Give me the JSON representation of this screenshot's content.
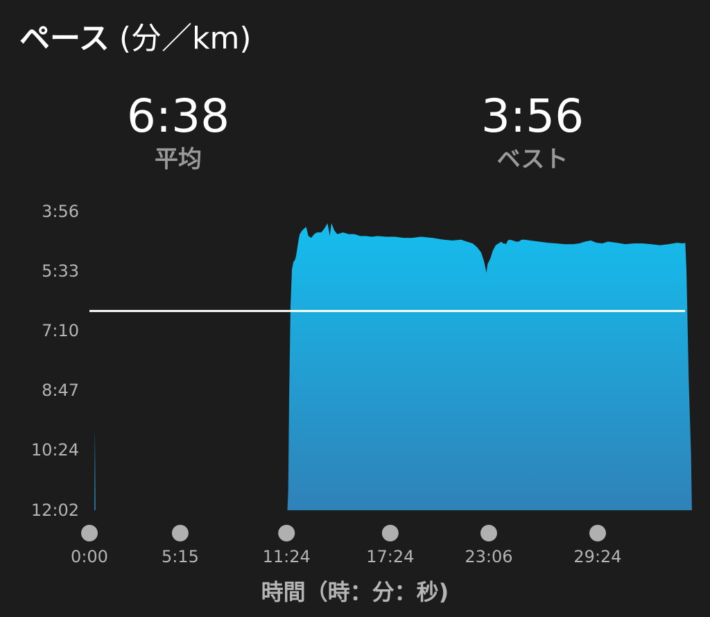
{
  "title": "ペース",
  "title_unit": "(分／km)",
  "stats": {
    "average": {
      "value": "6:38",
      "label": "平均"
    },
    "best": {
      "value": "3:56",
      "label": "ベスト"
    }
  },
  "colors": {
    "background": "#1c1c1c",
    "fill_top": "#15bdee",
    "fill_bottom": "#2f82b8",
    "average_line": "#ffffff",
    "marker": "#b0b0b0"
  },
  "chart_data": {
    "type": "area",
    "ylabel": "",
    "xlabel": "時間（時：分：秒)",
    "y_unit": "minutes per km",
    "y_reversed": true,
    "ylim": [
      12.0333,
      3.9333
    ],
    "xlim_seconds": [
      0,
      2130
    ],
    "y_ticks": [
      {
        "label": "3:56",
        "value": 3.9333
      },
      {
        "label": "5:33",
        "value": 5.55
      },
      {
        "label": "7:10",
        "value": 7.1667
      },
      {
        "label": "8:47",
        "value": 8.7833
      },
      {
        "label": "10:24",
        "value": 10.4
      },
      {
        "label": "12:02",
        "value": 12.0333
      }
    ],
    "x_ticks": [
      {
        "label": "0:00",
        "value": 0
      },
      {
        "label": "5:15",
        "value": 315
      },
      {
        "label": "11:24",
        "value": 684
      },
      {
        "label": "17:24",
        "value": 1044
      },
      {
        "label": "23:06",
        "value": 1386
      },
      {
        "label": "29:24",
        "value": 1764
      }
    ],
    "average_pace": 6.6333,
    "series": [
      {
        "x": [
          15,
          17,
          19,
          21,
          23,
          687,
          690,
          693,
          698,
          703,
          708,
          713,
          717,
          722,
          726,
          730,
          734,
          738,
          745,
          752,
          760,
          770,
          780,
          790,
          805,
          815,
          823,
          826,
          830,
          834,
          840,
          850,
          860,
          880,
          900,
          920,
          940,
          960,
          980,
          1000,
          1030,
          1060,
          1090,
          1120,
          1150,
          1190,
          1230,
          1260,
          1290,
          1310,
          1330,
          1345,
          1360,
          1370,
          1378,
          1382,
          1386,
          1392,
          1400,
          1410,
          1420,
          1430,
          1435,
          1440,
          1446,
          1452,
          1458,
          1470,
          1480,
          1490,
          1500,
          1510,
          1530,
          1560,
          1590,
          1620,
          1650,
          1680,
          1700,
          1720,
          1740,
          1760,
          1780,
          1800,
          1830,
          1860,
          1890,
          1920,
          1950,
          1980,
          2010,
          2040,
          2060,
          2068,
          2072,
          2080,
          2088,
          2091
        ],
        "y": [
          12.0333,
          12.0333,
          9.85,
          12.0333,
          12.0333,
          12.0333,
          11.5,
          9.0,
          6.5,
          5.5,
          5.3,
          5.25,
          5.15,
          4.9,
          4.7,
          4.55,
          4.5,
          4.45,
          4.4,
          4.35,
          4.6,
          4.65,
          4.55,
          4.5,
          4.5,
          4.4,
          4.3,
          4.25,
          4.4,
          4.6,
          4.25,
          4.45,
          4.55,
          4.5,
          4.55,
          4.55,
          4.6,
          4.6,
          4.62,
          4.6,
          4.62,
          4.62,
          4.65,
          4.65,
          4.62,
          4.65,
          4.7,
          4.72,
          4.7,
          4.75,
          4.8,
          4.9,
          5.05,
          5.3,
          5.6,
          5.35,
          5.3,
          5.2,
          5.0,
          4.85,
          4.8,
          4.75,
          4.8,
          4.8,
          4.82,
          4.72,
          4.7,
          4.72,
          4.75,
          4.75,
          4.7,
          4.7,
          4.72,
          4.75,
          4.78,
          4.8,
          4.82,
          4.82,
          4.8,
          4.75,
          4.72,
          4.78,
          4.8,
          4.75,
          4.78,
          4.82,
          4.8,
          4.8,
          4.82,
          4.85,
          4.82,
          4.78,
          4.8,
          4.78,
          5.5,
          8.5,
          10.5,
          12.0333
        ]
      }
    ]
  }
}
